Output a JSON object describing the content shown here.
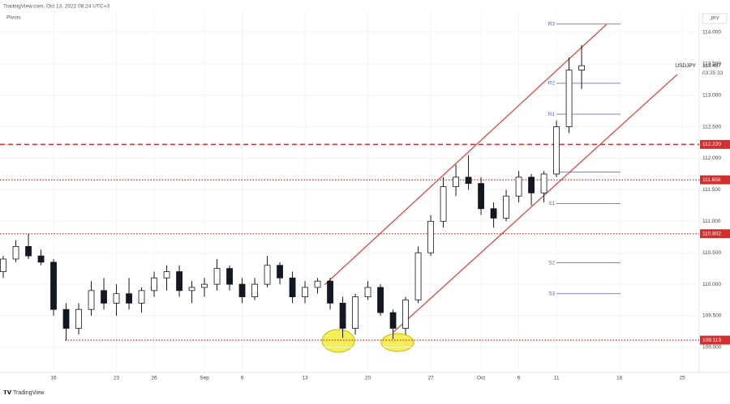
{
  "chart_data": {
    "type": "candlestick",
    "header": "TradingView.com, Oct 13, 2021 08:24 UTC+3",
    "indicator": "Pivots",
    "currency": "JPY",
    "symbol": "USDJPY",
    "countdown": "03:35:33",
    "brand": "TradingView",
    "last_price": {
      "value": 113.467,
      "label": "113.467"
    },
    "x": [
      -4,
      -3,
      -2,
      -1,
      0,
      1,
      2,
      3,
      4,
      5,
      6,
      7,
      8,
      9,
      10,
      11,
      12,
      13,
      14,
      15,
      16,
      17,
      18,
      19,
      20,
      21,
      22,
      23,
      24,
      25,
      26,
      27,
      28,
      29,
      30,
      31,
      32,
      33,
      34,
      35,
      36,
      37,
      38,
      39,
      40,
      41,
      42
    ],
    "open": [
      110.2,
      110.4,
      110.6,
      110.45,
      110.35,
      109.6,
      109.3,
      109.6,
      109.9,
      109.7,
      109.85,
      109.7,
      109.9,
      110.1,
      110.2,
      109.9,
      109.95,
      110.0,
      110.25,
      110.0,
      109.8,
      110.0,
      110.3,
      110.1,
      109.8,
      109.95,
      110.05,
      109.7,
      109.3,
      109.8,
      109.95,
      109.55,
      109.3,
      109.75,
      110.5,
      111.0,
      111.55,
      111.7,
      111.6,
      111.2,
      111.05,
      111.4,
      111.7,
      111.45,
      111.75,
      112.5,
      113.4
    ],
    "high": [
      110.45,
      110.7,
      110.8,
      110.55,
      110.4,
      109.7,
      109.7,
      110.05,
      110.1,
      110.0,
      110.1,
      109.95,
      110.2,
      110.3,
      110.3,
      110.05,
      110.1,
      110.4,
      110.3,
      110.1,
      110.1,
      110.45,
      110.35,
      110.2,
      110.05,
      110.1,
      110.1,
      109.8,
      109.85,
      110.05,
      110.0,
      109.6,
      109.8,
      110.6,
      111.1,
      111.7,
      111.9,
      112.05,
      111.7,
      111.3,
      111.5,
      111.8,
      111.75,
      111.8,
      112.6,
      113.6,
      113.8
    ],
    "low": [
      110.1,
      110.35,
      110.4,
      110.3,
      109.5,
      109.11,
      109.2,
      109.5,
      109.6,
      109.5,
      109.6,
      109.55,
      109.8,
      109.9,
      109.8,
      109.7,
      109.8,
      109.9,
      109.9,
      109.7,
      109.75,
      109.95,
      110.0,
      109.7,
      109.7,
      109.85,
      109.6,
      109.15,
      109.2,
      109.75,
      109.5,
      109.13,
      109.2,
      109.7,
      110.45,
      110.9,
      111.4,
      111.5,
      111.1,
      110.9,
      111.0,
      111.3,
      111.25,
      111.3,
      111.7,
      112.4,
      113.1
    ],
    "close": [
      110.4,
      110.6,
      110.45,
      110.35,
      109.6,
      109.3,
      109.6,
      109.9,
      109.7,
      109.85,
      109.7,
      109.9,
      110.1,
      110.2,
      109.9,
      109.95,
      110.0,
      110.25,
      110.0,
      109.8,
      110.0,
      110.3,
      110.1,
      109.8,
      109.95,
      110.05,
      109.7,
      109.3,
      109.8,
      109.95,
      109.55,
      109.3,
      109.75,
      110.5,
      111.0,
      111.55,
      111.7,
      111.6,
      111.2,
      111.05,
      111.4,
      111.7,
      111.45,
      111.75,
      112.5,
      113.4,
      113.47
    ],
    "up_color": "#ffffff",
    "down_color": "#131722",
    "xlim": [
      -4.26,
      51.35
    ],
    "xticks": [
      {
        "value": 0,
        "label": "16"
      },
      {
        "value": 5,
        "label": "23"
      },
      {
        "value": 8,
        "label": "26"
      },
      {
        "value": 12,
        "label": "Sep"
      },
      {
        "value": 15,
        "label": "6"
      },
      {
        "value": 20,
        "label": "13"
      },
      {
        "value": 25,
        "label": "20"
      },
      {
        "value": 30,
        "label": "27"
      },
      {
        "value": 34,
        "label": "Oct"
      },
      {
        "value": 37,
        "label": "6"
      },
      {
        "value": 40,
        "label": "11"
      },
      {
        "value": 45,
        "label": "18"
      },
      {
        "value": 50,
        "label": "25"
      }
    ],
    "ylim": [
      108.6,
      114.32
    ],
    "yticks": [
      {
        "value": 109,
        "label": "109.000"
      },
      {
        "value": 109.5,
        "label": "109.500"
      },
      {
        "value": 110,
        "label": "110.000"
      },
      {
        "value": 110.5,
        "label": "110.500"
      },
      {
        "value": 111,
        "label": "111.000"
      },
      {
        "value": 111.5,
        "label": "111.500"
      },
      {
        "value": 112,
        "label": "112.000"
      },
      {
        "value": 112.5,
        "label": "112.500"
      },
      {
        "value": 113,
        "label": "113.000"
      },
      {
        "value": 113.5,
        "label": "113.500"
      },
      {
        "value": 114,
        "label": "114.000"
      }
    ],
    "grid": true,
    "levels": [
      {
        "value": 112.22,
        "label": "112.220",
        "style": "dashed",
        "start": -4.26
      },
      {
        "value": 111.658,
        "label": "111.658",
        "style": "dotted",
        "start": -4.26
      },
      {
        "value": 110.802,
        "label": "110.802",
        "style": "dotted",
        "start": -4.26
      },
      {
        "value": 109.113,
        "label": "109.113",
        "style": "dotted",
        "start": 0.9
      }
    ],
    "level_color": "#d32f2f",
    "pivots": [
      {
        "name": "R3",
        "value": 114.13
      },
      {
        "name": "R2",
        "value": 113.19
      },
      {
        "name": "R1",
        "value": 112.7
      },
      {
        "name": null,
        "value": 111.78
      },
      {
        "name": "S1",
        "value": 111.28
      },
      {
        "name": "S2",
        "value": 110.34
      },
      {
        "name": "S3",
        "value": 109.85
      }
    ],
    "pivot_x": [
      40,
      45.1
    ],
    "pivot_color": "#5b5fa8",
    "channels": [
      {
        "x": [
          21.55,
          44
        ],
        "values": [
          109.99,
          114.13
        ]
      },
      {
        "x": [
          27.03,
          49.6
        ],
        "values": [
          109.24,
          113.33
        ]
      }
    ],
    "channel_color": "#e53935"
  }
}
